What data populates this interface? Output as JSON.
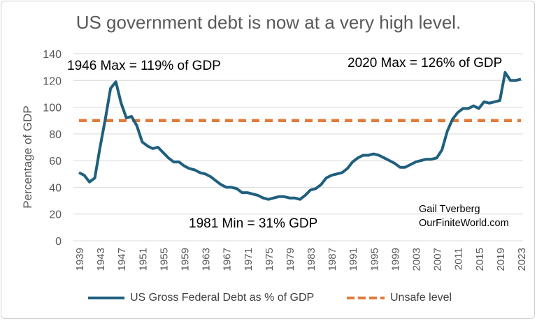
{
  "chart_data": {
    "type": "line",
    "title": "US government debt is now at a very high level.",
    "xlabel": "",
    "ylabel": "Percentage of GDP",
    "ylim": [
      0,
      140
    ],
    "yticks": [
      0,
      20,
      40,
      60,
      80,
      100,
      120,
      140
    ],
    "xtick_labels": [
      "1939",
      "1943",
      "1947",
      "1951",
      "1955",
      "1959",
      "1963",
      "1967",
      "1971",
      "1975",
      "1979",
      "1983",
      "1987",
      "1991",
      "1995",
      "1999",
      "2003",
      "2007",
      "2011",
      "2015",
      "2019",
      "2023"
    ],
    "grid": true,
    "legend_position": "bottom",
    "x": [
      1939,
      1940,
      1941,
      1942,
      1943,
      1944,
      1945,
      1946,
      1947,
      1948,
      1949,
      1950,
      1951,
      1952,
      1953,
      1954,
      1955,
      1956,
      1957,
      1958,
      1959,
      1960,
      1961,
      1962,
      1963,
      1964,
      1965,
      1966,
      1967,
      1968,
      1969,
      1970,
      1971,
      1972,
      1973,
      1974,
      1975,
      1976,
      1977,
      1978,
      1979,
      1980,
      1981,
      1982,
      1983,
      1984,
      1985,
      1986,
      1987,
      1988,
      1989,
      1990,
      1991,
      1992,
      1993,
      1994,
      1995,
      1996,
      1997,
      1998,
      1999,
      2000,
      2001,
      2002,
      2003,
      2004,
      2005,
      2006,
      2007,
      2008,
      2009,
      2010,
      2011,
      2012,
      2013,
      2014,
      2015,
      2016,
      2017,
      2018,
      2019,
      2020,
      2021,
      2022,
      2023
    ],
    "series": [
      {
        "name": "US Gross Federal Debt as % of GDP",
        "color": "#1f5f7f",
        "style": "solid",
        "values": [
          51,
          49,
          44,
          47,
          70,
          91,
          114,
          119,
          103,
          92,
          93,
          86,
          74,
          71,
          69,
          70,
          66,
          62,
          59,
          59,
          56,
          54,
          53,
          51,
          50,
          48,
          45,
          42,
          40,
          40,
          39,
          36,
          36,
          35,
          34,
          32,
          31,
          32,
          33,
          33,
          32,
          32,
          31,
          34,
          38,
          39,
          42,
          47,
          49,
          50,
          51,
          54,
          59,
          62,
          64,
          64,
          65,
          64,
          62,
          60,
          58,
          55,
          55,
          57,
          59,
          60,
          61,
          61,
          62,
          68,
          82,
          91,
          96,
          99,
          99,
          101,
          99,
          104,
          103,
          104,
          105,
          126,
          120,
          120,
          121
        ]
      },
      {
        "name": "Unsafe level",
        "color": "#e07b39",
        "style": "dashed",
        "constant": 90
      }
    ],
    "annotations": [
      {
        "text": "1946 Max = 119% of GDP"
      },
      {
        "text": "2020 Max = 126% of GDP"
      },
      {
        "text": "1981 Min = 31% GDP"
      }
    ],
    "credit": [
      "Gail Tverberg",
      "OurFiniteWorld.com"
    ]
  }
}
